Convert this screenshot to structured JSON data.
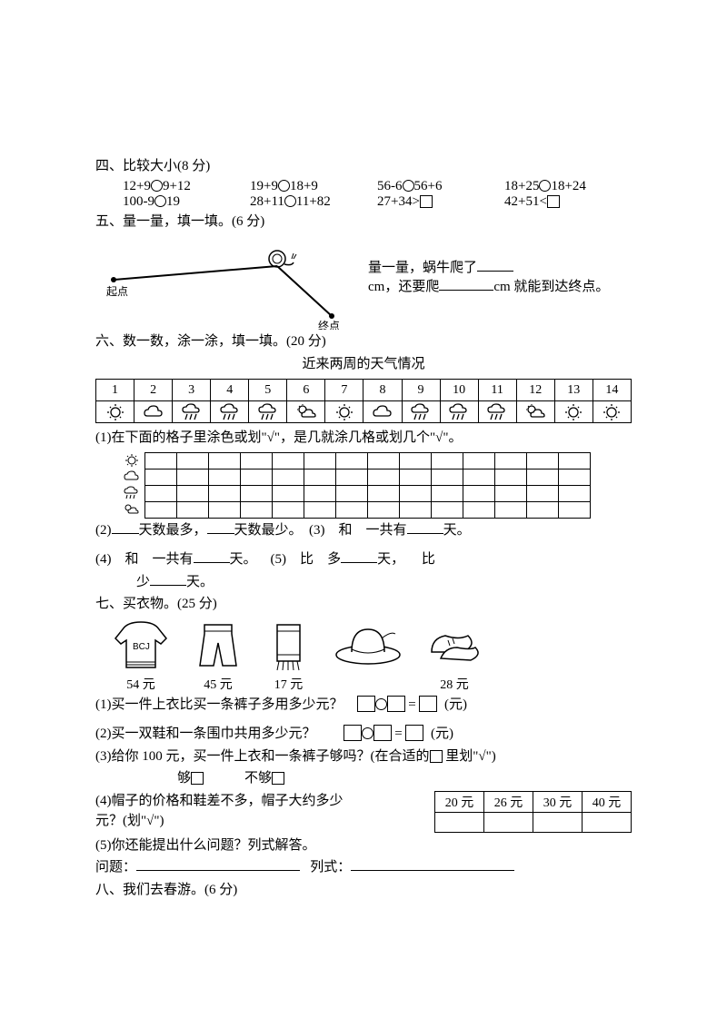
{
  "s4": {
    "title": "四、比较大小(8 分)",
    "row1": [
      "12+9",
      "9+12",
      "19+9",
      "18+9",
      "56-6",
      "56+6",
      "18+25",
      "18+24"
    ],
    "row2": [
      "100-9",
      "19",
      "28+11",
      "11+82",
      "27+34>",
      "42+51<"
    ]
  },
  "s5": {
    "title": "五、量一量，填一填。(6 分)",
    "start": "起点",
    "end": "终点",
    "text1": "量一量，蜗牛爬了",
    "text2": "cm，还要爬",
    "text3": "cm 就能到达终点。"
  },
  "s6": {
    "title": "六、数一数，涂一涂，填一填。(20 分)",
    "subtitle": "近来两周的天气情况",
    "days": [
      "1",
      "2",
      "3",
      "4",
      "5",
      "6",
      "7",
      "8",
      "9",
      "10",
      "11",
      "12",
      "13",
      "14"
    ],
    "weather_types": [
      "sun",
      "cloud",
      "rain",
      "rain",
      "rain",
      "sun-cloud",
      "sun",
      "cloud",
      "rain",
      "rain",
      "rain",
      "sun-cloud",
      "sun",
      "sun"
    ],
    "q1": "(1)在下面的格子里涂色或划\"√\"，是几就涂几格或划几个\"√\"。",
    "q2a": "(2)",
    "q2b": "天数最多，",
    "q2c": "天数最少。",
    "q3a": "(3)",
    "q3b": "和",
    "q3c": "一共有",
    "q3d": "天。",
    "q4a": "(4)",
    "q4b": "和",
    "q4c": "一共有",
    "q4d": "天。",
    "q5a": "(5)",
    "q5b": "比",
    "q5c": "多",
    "q5d": "天，",
    "q5e": "比",
    "q5f": "少",
    "q5g": "天。"
  },
  "s7": {
    "title": "七、买衣物。(25 分)",
    "items": [
      "54 元",
      "45 元",
      "17 元",
      "",
      "28 元"
    ],
    "q1": "(1)买一件上衣比买一条裤子多用多少元？",
    "q2": "(2)买一双鞋和一条围巾共用多少元？",
    "eq_yuan": "(元)",
    "q3": "(3)给你 100 元，买一件上衣和一条裤子够吗？(在合适的",
    "q3b": "里划\"√\")",
    "q3c": "够",
    "q3d": "不够",
    "q4a": "(4)帽子的价格和鞋差不多，帽子大约多少元？(划\"√\")",
    "prices": [
      "20 元",
      "26 元",
      "30 元",
      "40 元"
    ],
    "q5": "(5)你还能提出什么问题？列式解答。",
    "q5b": "问题：",
    "q5c": "列式："
  },
  "s8": {
    "title": "八、我们去春游。(6 分)"
  }
}
